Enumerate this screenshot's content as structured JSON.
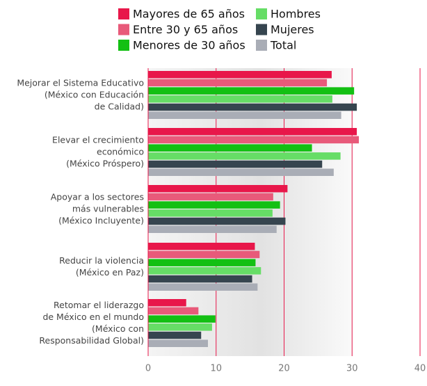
{
  "chart_data": {
    "type": "hbar",
    "categories": [
      [
        "Mejorar el Sistema Educativo",
        "(México con Educación",
        "de Calidad)"
      ],
      [
        "Elevar el crecimiento",
        "económico",
        "(México Próspero)"
      ],
      [
        "Apoyar a los sectores",
        "más vulnerables",
        "(México Incluyente)"
      ],
      [
        "Reducir la violencia",
        "(México en Paz)"
      ],
      [
        "Retomar el liderazgo",
        "de México en el mundo",
        "(México con",
        "Responsabilidad Global)"
      ]
    ],
    "series": [
      {
        "name": "Mayores de 65 años",
        "color": "#e8174a",
        "values": [
          27.0,
          30.7,
          20.5,
          15.7,
          5.6
        ]
      },
      {
        "name": "Entre 30 y 65 años",
        "color": "#e85a7a",
        "values": [
          26.3,
          31.0,
          18.4,
          16.4,
          7.4
        ]
      },
      {
        "name": "Menores de 30 años",
        "color": "#13c013",
        "values": [
          30.3,
          24.1,
          19.4,
          15.8,
          9.9
        ]
      },
      {
        "name": "Hombres",
        "color": "#66dd66",
        "values": [
          27.1,
          28.3,
          18.3,
          16.6,
          9.4
        ]
      },
      {
        "name": "Mujeres",
        "color": "#36454f",
        "values": [
          30.7,
          25.6,
          20.2,
          15.3,
          7.8
        ]
      },
      {
        "name": "Total",
        "color": "#a9adb6",
        "values": [
          28.4,
          27.3,
          18.9,
          16.1,
          8.8
        ]
      }
    ],
    "xlim": [
      0,
      40
    ],
    "xticks": [
      0,
      10,
      20,
      30,
      40
    ],
    "grid": true,
    "grid_color": "#e8174a"
  }
}
